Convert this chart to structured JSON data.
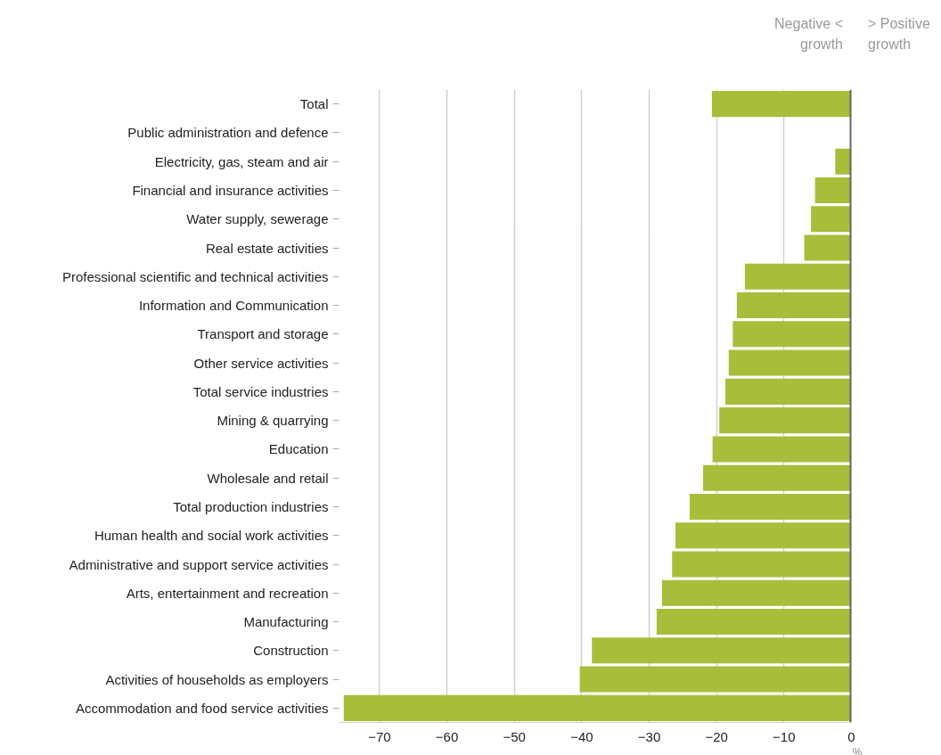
{
  "chart_data": {
    "type": "bar",
    "orientation": "horizontal",
    "categories": [
      "Total",
      "Public administration and defence",
      "Electricity, gas, steam and air",
      "Financial and insurance activities",
      "Water supply, sewerage",
      "Real estate activities",
      "Professional scientific and technical activities",
      "Information and Communication",
      "Transport and storage",
      "Other service activities",
      "Total service industries",
      "Mining & quarrying",
      "Education",
      "Wholesale and retail",
      "Total production industries",
      "Human health and social work activities",
      "Administrative and support service activities",
      "Arts, entertainment and recreation",
      "Manufacturing",
      "Construction",
      "Activities of households as employers",
      "Accommodation and food service activities"
    ],
    "values": [
      -20.7,
      0,
      -2.4,
      -5.4,
      -6.0,
      -7.0,
      -15.8,
      -17.0,
      -17.6,
      -18.2,
      -18.7,
      -19.6,
      -20.6,
      -22.0,
      -24.0,
      -26.1,
      -26.6,
      -28.1,
      -28.9,
      -38.5,
      -40.3,
      -75.3
    ],
    "color": "#a8bd3a",
    "xlim": [
      -76,
      0
    ],
    "xticks": [
      -70,
      -60,
      -50,
      -40,
      -30,
      -20,
      -10,
      0
    ],
    "xlabel": "%",
    "grid": "x",
    "ref_lines": [
      {
        "axis": "x",
        "value": 0,
        "color": "#666666"
      }
    ],
    "annotations": [
      "Negative <\ngrowth",
      "> Positive\ngrowth"
    ]
  }
}
